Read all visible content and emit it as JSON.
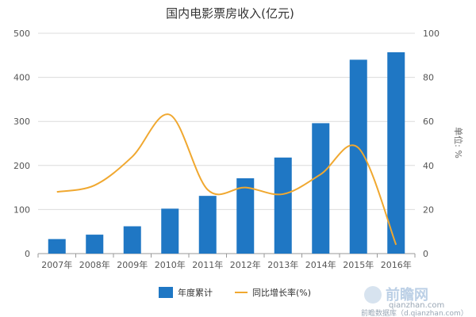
{
  "chart_data": {
    "type": "bar",
    "title": "国内电影票房收入(亿元)",
    "categories": [
      "2007年",
      "2008年",
      "2009年",
      "2010年",
      "2011年",
      "2012年",
      "2013年",
      "2014年",
      "2015年",
      "2016年"
    ],
    "series": [
      {
        "name": "年度累计",
        "type": "bar",
        "axis": "left",
        "color": "#1f77c4",
        "values": [
          33,
          43,
          62,
          102,
          131,
          171,
          218,
          296,
          440,
          457
        ]
      },
      {
        "name": "同比增长率(%)",
        "type": "line",
        "axis": "right",
        "color": "#f0a830",
        "values": [
          28,
          31,
          44,
          63,
          29,
          30,
          27,
          36,
          48,
          4
        ]
      }
    ],
    "y_left": {
      "min": 0,
      "max": 500,
      "ticks": [
        0,
        100,
        200,
        300,
        400,
        500
      ]
    },
    "y_right": {
      "min": 0,
      "max": 100,
      "ticks": [
        0,
        20,
        40,
        60,
        80,
        100
      ],
      "label": "单位: %"
    },
    "legend_position": "bottom",
    "grid": true
  },
  "watermark": {
    "brand": "前瞻网",
    "site": "qianzhan.com",
    "footer": "前瞻数据库（d.qianzhan.com）"
  }
}
